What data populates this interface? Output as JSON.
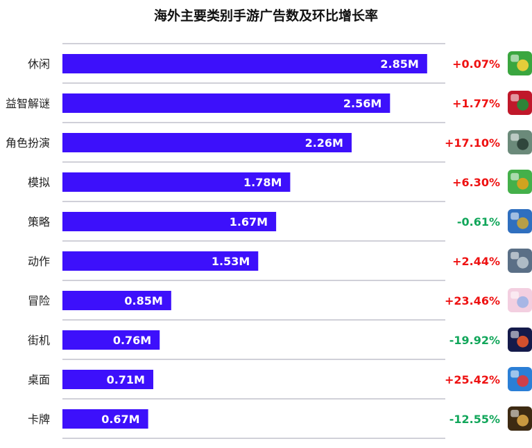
{
  "chart_data": {
    "type": "bar",
    "orientation": "horizontal",
    "title": "海外主要类别手游广告数及环比增长率",
    "categories": [
      "休闲",
      "益智解谜",
      "角色扮演",
      "模拟",
      "策略",
      "动作",
      "冒险",
      "街机",
      "桌面",
      "卡牌"
    ],
    "values": [
      2.85,
      2.56,
      2.26,
      1.78,
      1.67,
      1.53,
      0.85,
      0.76,
      0.71,
      0.67
    ],
    "value_labels": [
      "2.85M",
      "2.56M",
      "2.26M",
      "1.78M",
      "1.67M",
      "1.53M",
      "0.85M",
      "0.76M",
      "0.71M",
      "0.67M"
    ],
    "unit": "M",
    "changes": [
      "+0.07%",
      "+1.77%",
      "+17.10%",
      "+6.30%",
      "-0.61%",
      "+2.44%",
      "+23.46%",
      "-19.92%",
      "+25.42%",
      "-12.55%"
    ],
    "bar_color": "#3d10fb",
    "positive_color": "#ee1111",
    "negative_color": "#11a65a",
    "gridline_color": "#d0d0d8",
    "icons": [
      "casual-game-icon",
      "puzzle-block-game-icon",
      "rpg-game-icon",
      "simulation-game-icon",
      "strategy-game-icon",
      "action-game-icon",
      "adventure-game-icon",
      "arcade-game-icon",
      "board-game-icon",
      "card-game-icon"
    ],
    "icon_colors": [
      [
        "#3aa63f",
        "#f6d23a"
      ],
      [
        "#c0182a",
        "#1f8f3a"
      ],
      [
        "#6b8a7a",
        "#2a3e35"
      ],
      [
        "#44b04a",
        "#e0a21b"
      ],
      [
        "#2f6fbf",
        "#c7a33a"
      ],
      [
        "#5a6f86",
        "#b7c3cc"
      ],
      [
        "#f3cfe0",
        "#9fb2e6"
      ],
      [
        "#141a4a",
        "#e8572a"
      ],
      [
        "#2b7fd6",
        "#e03a3a"
      ],
      [
        "#3d2a12",
        "#d8a445"
      ]
    ]
  }
}
